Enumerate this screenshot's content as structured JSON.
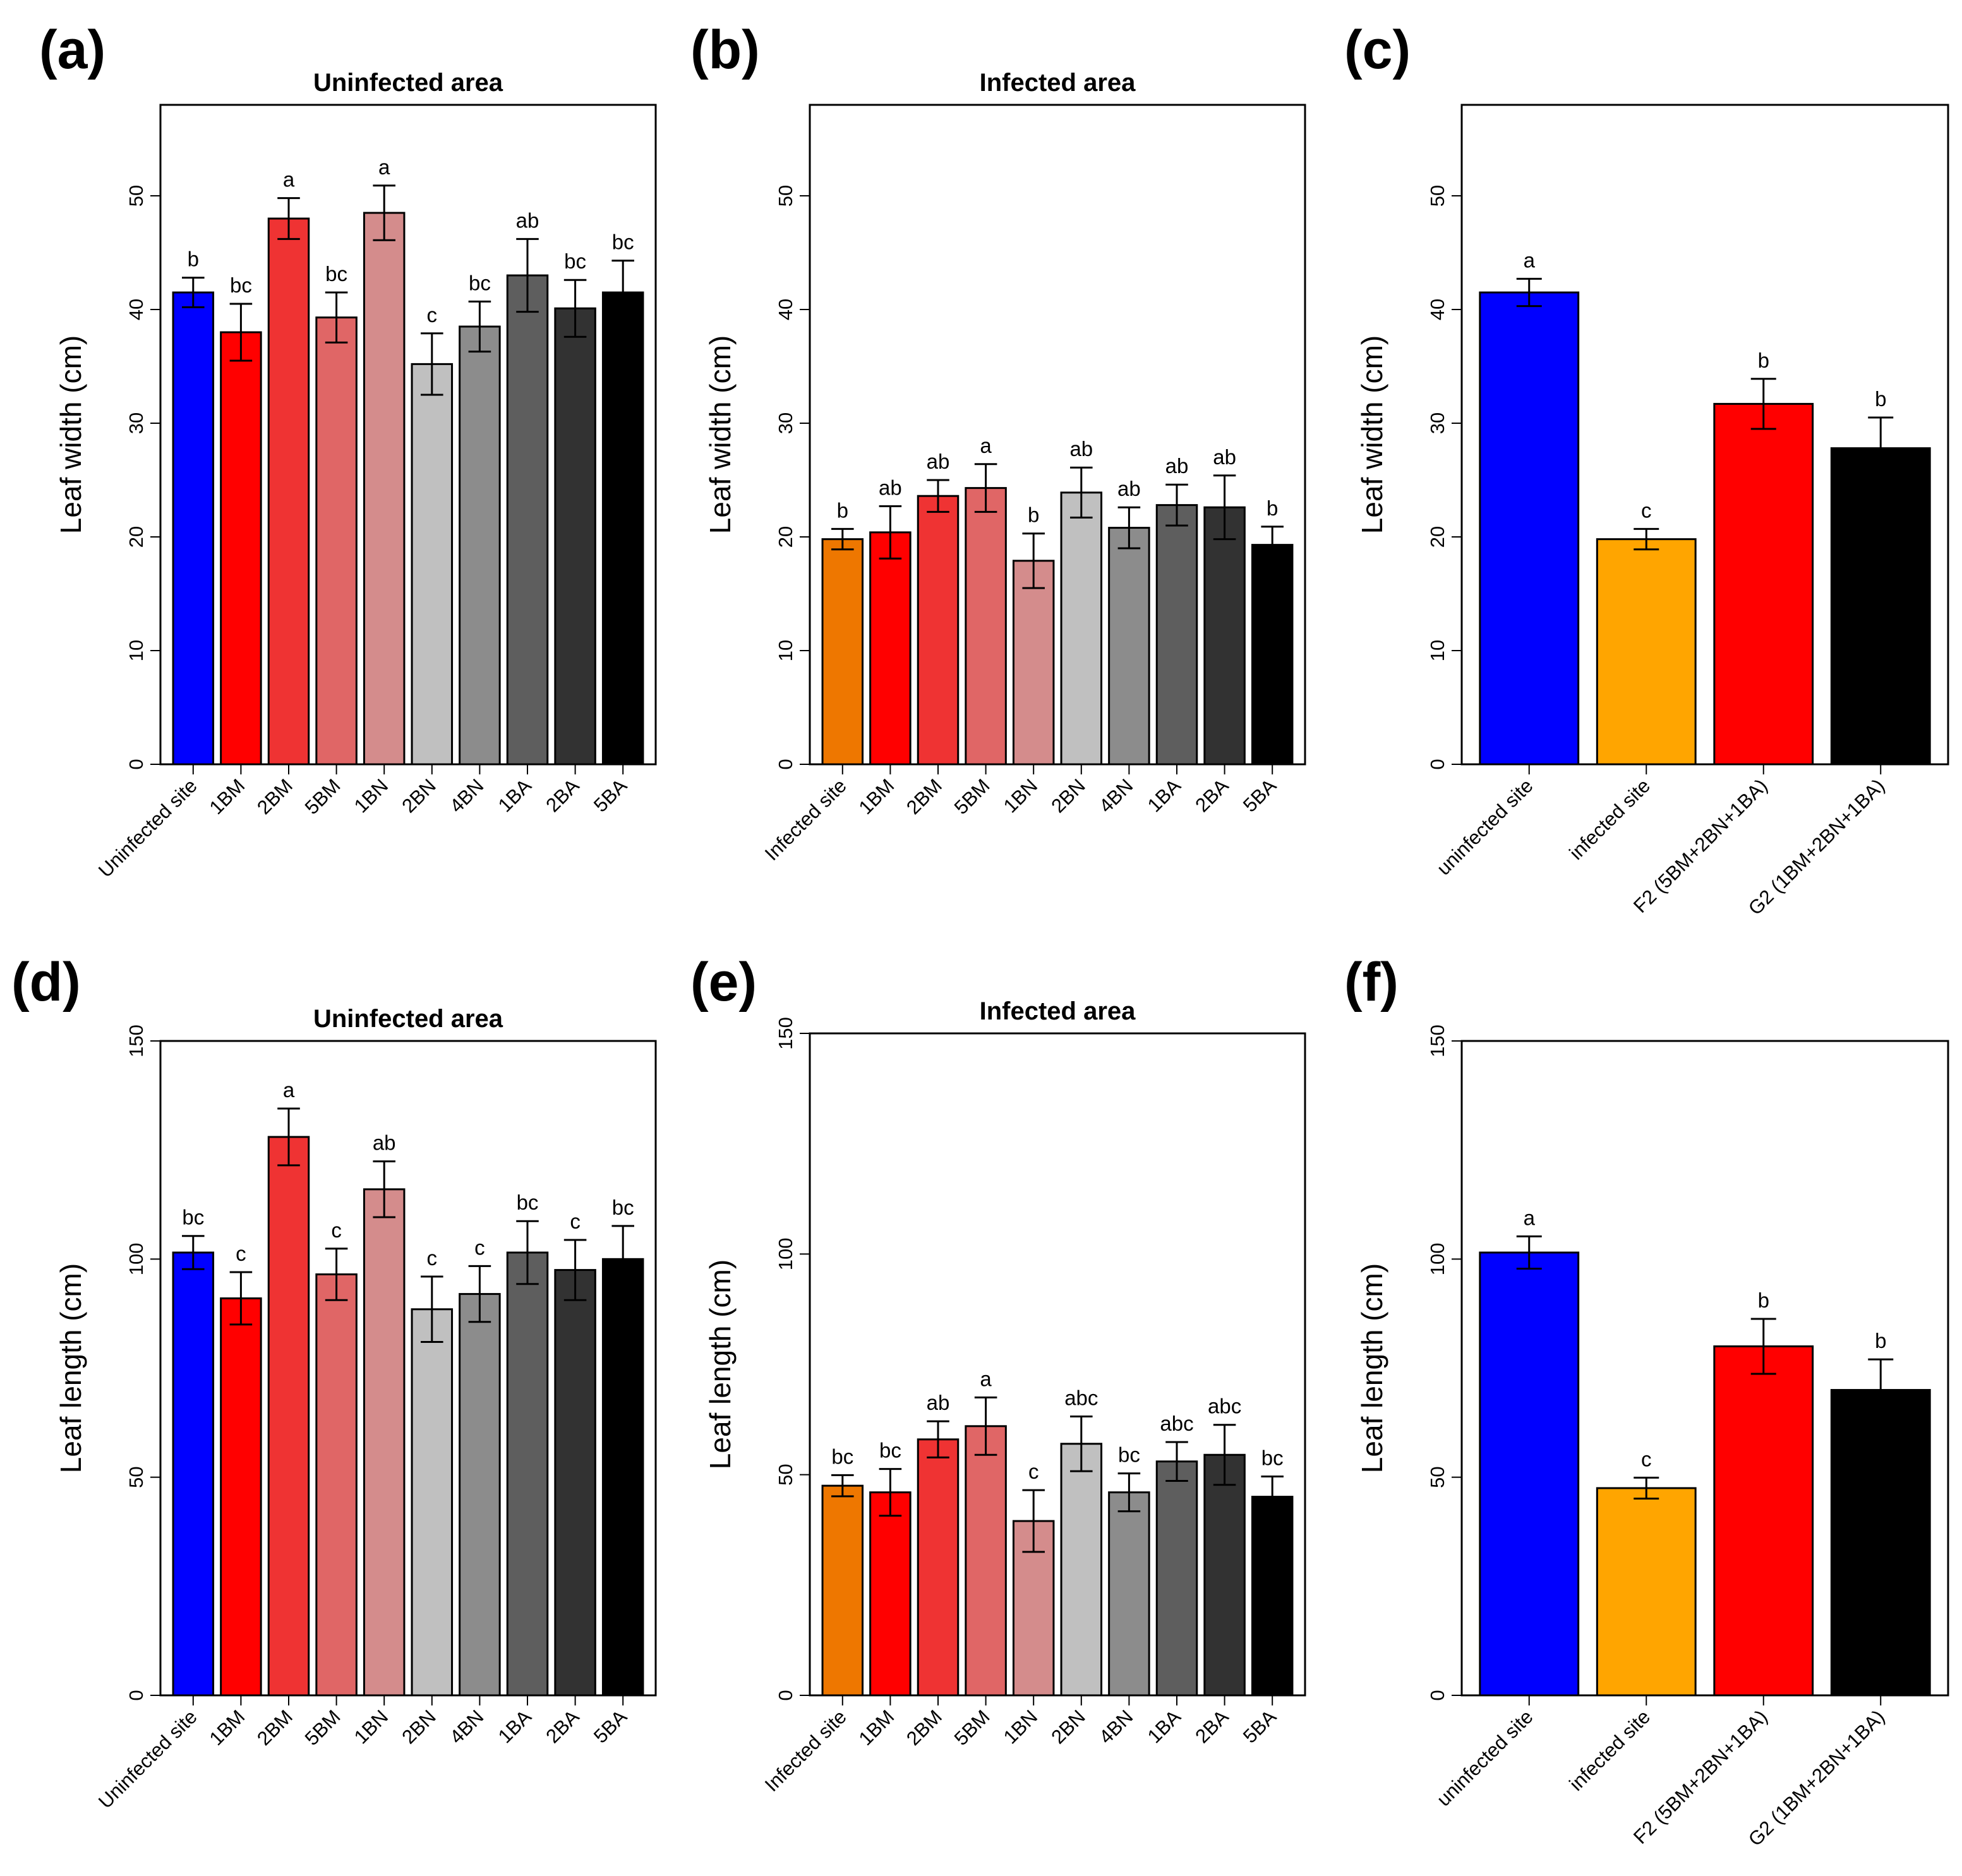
{
  "chart_data": [
    {
      "id": "a",
      "panel_label": "(a)",
      "type": "bar",
      "title": "Uninfected area",
      "xlabel": "",
      "ylabel": "Leaf width (cm)",
      "ylim": [
        0,
        58
      ],
      "yticks": [
        0,
        10,
        20,
        30,
        40,
        50
      ],
      "grid": false,
      "legend": "none",
      "categories": [
        "Uninfected site",
        "1BM",
        "2BM",
        "5BM",
        "1BN",
        "2BN",
        "4BN",
        "1BA",
        "2BA",
        "5BA"
      ],
      "values": [
        41.5,
        38,
        48,
        39.3,
        48.5,
        35.2,
        38.5,
        43,
        40.1,
        41.5
      ],
      "errors": [
        1.3,
        2.5,
        1.8,
        2.2,
        2.4,
        2.7,
        2.2,
        3.2,
        2.5,
        2.8
      ],
      "letters": [
        "b",
        "bc",
        "a",
        "bc",
        "a",
        "c",
        "bc",
        "ab",
        "bc",
        "bc"
      ],
      "colors": [
        "#0000ff",
        "#ff0000",
        "#ef3333",
        "#e06666",
        "#d48c8c",
        "#c0c0c0",
        "#8c8c8c",
        "#5e5e5e",
        "#323232",
        "#000000"
      ]
    },
    {
      "id": "b",
      "panel_label": "(b)",
      "type": "bar",
      "title": "Infected area",
      "xlabel": "",
      "ylabel": "Leaf width (cm)",
      "ylim": [
        0,
        58
      ],
      "yticks": [
        0,
        10,
        20,
        30,
        40,
        50
      ],
      "grid": false,
      "legend": "none",
      "categories": [
        "Infected site",
        "1BM",
        "2BM",
        "5BM",
        "1BN",
        "2BN",
        "4BN",
        "1BA",
        "2BA",
        "5BA"
      ],
      "values": [
        19.8,
        20.4,
        23.6,
        24.3,
        17.9,
        23.9,
        20.8,
        22.8,
        22.6,
        19.3
      ],
      "errors": [
        0.9,
        2.3,
        1.4,
        2.1,
        2.4,
        2.2,
        1.8,
        1.8,
        2.8,
        1.6
      ],
      "letters": [
        "b",
        "ab",
        "ab",
        "a",
        "b",
        "ab",
        "ab",
        "ab",
        "ab",
        "b"
      ],
      "colors": [
        "#ee7700",
        "#ff0000",
        "#ef3333",
        "#e06666",
        "#d48c8c",
        "#c0c0c0",
        "#8c8c8c",
        "#5e5e5e",
        "#323232",
        "#000000"
      ]
    },
    {
      "id": "c",
      "panel_label": "(c)",
      "type": "bar",
      "title": "",
      "xlabel": "",
      "ylabel": "Leaf width (cm)",
      "ylim": [
        0,
        58
      ],
      "yticks": [
        0,
        10,
        20,
        30,
        40,
        50
      ],
      "grid": false,
      "legend": "none",
      "categories": [
        "uninfected site",
        "infected site",
        "F2 (5BM+2BN+1BA)",
        "G2 (1BM+2BN+1BA)"
      ],
      "values": [
        41.5,
        19.8,
        31.7,
        27.8
      ],
      "errors": [
        1.2,
        0.9,
        2.2,
        2.7
      ],
      "letters": [
        "a",
        "c",
        "b",
        "b"
      ],
      "colors": [
        "#0000ff",
        "#ffa500",
        "#ff0000",
        "#000000"
      ]
    },
    {
      "id": "d",
      "panel_label": "(d)",
      "type": "bar",
      "title": "Uninfected area",
      "xlabel": "",
      "ylabel": "Leaf length (cm)",
      "ylim": [
        0,
        150
      ],
      "yticks": [
        0,
        50,
        100,
        150
      ],
      "grid": false,
      "legend": "none",
      "categories": [
        "Uninfected site",
        "1BM",
        "2BM",
        "5BM",
        "1BN",
        "2BN",
        "4BN",
        "1BA",
        "2BA",
        "5BA"
      ],
      "values": [
        101.5,
        91,
        128,
        96.5,
        116,
        88.5,
        92,
        101.5,
        97.5,
        100
      ],
      "errors": [
        3.8,
        6.0,
        6.5,
        5.9,
        6.4,
        7.5,
        6.4,
        7.2,
        6.9,
        7.6
      ],
      "letters": [
        "bc",
        "c",
        "a",
        "c",
        "ab",
        "c",
        "c",
        "bc",
        "c",
        "bc"
      ],
      "colors": [
        "#0000ff",
        "#ff0000",
        "#ef3333",
        "#e06666",
        "#d48c8c",
        "#c0c0c0",
        "#8c8c8c",
        "#5e5e5e",
        "#323232",
        "#000000"
      ]
    },
    {
      "id": "e",
      "panel_label": "(e)",
      "type": "bar",
      "title": "Infected area",
      "xlabel": "",
      "ylabel": "Leaf length (cm)",
      "ylim": [
        0,
        150
      ],
      "yticks": [
        0,
        50,
        100,
        150
      ],
      "grid": false,
      "legend": "none",
      "categories": [
        "Infected site",
        "1BM",
        "2BM",
        "5BM",
        "1BN",
        "2BN",
        "4BN",
        "1BA",
        "2BA",
        "5BA"
      ],
      "values": [
        47.5,
        46,
        58,
        61,
        39.5,
        57,
        46,
        53,
        54.5,
        45
      ],
      "errors": [
        2.4,
        5.3,
        4.1,
        6.5,
        7.0,
        6.2,
        4.3,
        4.4,
        6.8,
        4.6
      ],
      "letters": [
        "bc",
        "bc",
        "ab",
        "a",
        "c",
        "abc",
        "bc",
        "abc",
        "abc",
        "bc"
      ],
      "colors": [
        "#ee7700",
        "#ff0000",
        "#ef3333",
        "#e06666",
        "#d48c8c",
        "#c0c0c0",
        "#8c8c8c",
        "#5e5e5e",
        "#323232",
        "#000000"
      ]
    },
    {
      "id": "f",
      "panel_label": "(f)",
      "type": "bar",
      "title": "",
      "xlabel": "",
      "ylabel": "Leaf length (cm)",
      "ylim": [
        0,
        150
      ],
      "yticks": [
        0,
        50,
        100,
        150
      ],
      "grid": false,
      "legend": "none",
      "categories": [
        "uninfected site",
        "infected site",
        "F2 (5BM+2BN+1BA)",
        "G2 (1BM+2BN+1BA)"
      ],
      "values": [
        101.5,
        47.5,
        80,
        70
      ],
      "errors": [
        3.7,
        2.4,
        6.3,
        7.0
      ],
      "letters": [
        "a",
        "c",
        "b",
        "b"
      ],
      "colors": [
        "#0000ff",
        "#ffa500",
        "#ff0000",
        "#000000"
      ]
    }
  ]
}
